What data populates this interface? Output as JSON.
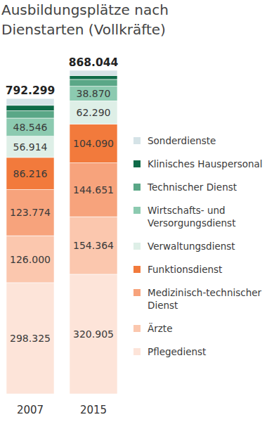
{
  "chart_data": {
    "type": "bar",
    "stacked": true,
    "data_labels": true,
    "tick_labels": "x",
    "title": "Ausbildungsplätze nach Dienstarten (Vollkräfte)",
    "categories": [
      "2007",
      "2015"
    ],
    "ylim": [
      0,
      868044
    ],
    "totals": [
      792299,
      868044
    ],
    "total_labels": [
      "792.299",
      "868.044"
    ],
    "series": [
      {
        "name": "Pflegedienst",
        "color": "#fde4d9",
        "values": [
          298325,
          320905
        ],
        "value_labels": [
          "298.325",
          "320.905"
        ]
      },
      {
        "name": "Ärzte",
        "color": "#fbc7ae",
        "values": [
          126000,
          154364
        ],
        "value_labels": [
          "126.000",
          "154.364"
        ]
      },
      {
        "name": "Medizinisch-technischer Dienst",
        "color": "#f7a37c",
        "values": [
          123774,
          144651
        ],
        "value_labels": [
          "123.774",
          "144.651"
        ]
      },
      {
        "name": "Funktionsdienst",
        "color": "#f27a3c",
        "values": [
          86216,
          104090
        ],
        "value_labels": [
          "86.216",
          "104.090"
        ]
      },
      {
        "name": "Verwaltungsdienst",
        "color": "#deefe7",
        "values": [
          56914,
          62290
        ],
        "value_labels": [
          "56.914",
          "62.290"
        ]
      },
      {
        "name": "Wirtschafts- und Versorgungsdienst",
        "color": "#8ccab0",
        "values": [
          48546,
          38870
        ],
        "value_labels": [
          "48.546",
          "38.870"
        ]
      },
      {
        "name": "Technischer Dienst",
        "color": "#5aa787",
        "values": [
          19800,
          18500
        ],
        "value_labels": [
          null,
          null
        ]
      },
      {
        "name": "Klinisches Hauspersonal",
        "color": "#0e6b48",
        "values": [
          14500,
          10500
        ],
        "value_labels": [
          null,
          null
        ]
      },
      {
        "name": "Sonderdienste",
        "color": "#d5e3e7",
        "values": [
          18224,
          13874
        ],
        "value_labels": [
          null,
          null
        ]
      }
    ]
  }
}
